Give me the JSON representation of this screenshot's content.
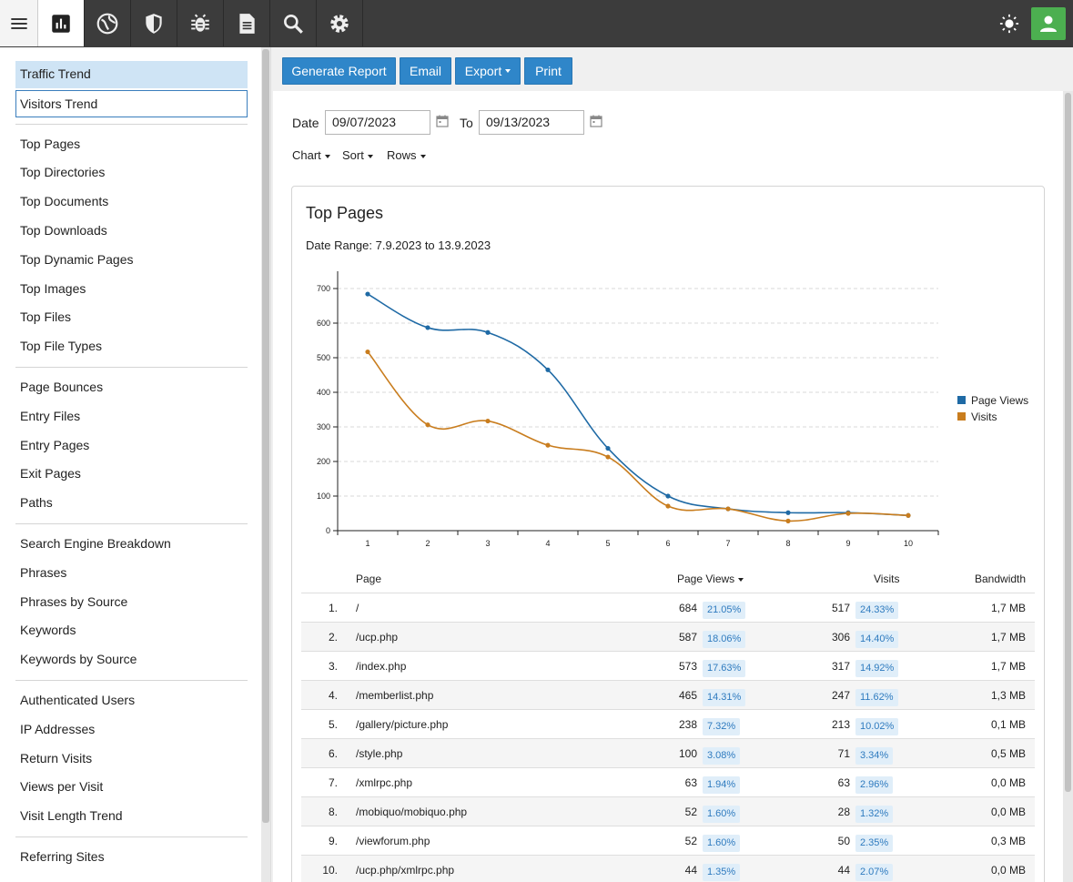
{
  "topbar": {
    "icons": [
      "menu-icon",
      "chart-icon",
      "globe-icon",
      "shield-icon",
      "bug-icon",
      "document-icon",
      "search-icon",
      "gear-icon"
    ],
    "right_icons": [
      "sun-icon",
      "user-icon"
    ],
    "colors": {
      "bar": "#3c3c3c",
      "user": "#4caf50"
    }
  },
  "sidebar": {
    "top_items": [
      "Traffic Trend",
      "Visitors Trend"
    ],
    "groups": [
      [
        "Top Pages",
        "Top Directories",
        "Top Documents",
        "Top Downloads",
        "Top Dynamic Pages",
        "Top Images",
        "Top Files",
        "Top File Types"
      ],
      [
        "Page Bounces",
        "Entry Files",
        "Entry Pages",
        "Exit Pages",
        "Paths"
      ],
      [
        "Search Engine Breakdown",
        "Phrases",
        "Phrases by Source",
        "Keywords",
        "Keywords by Source"
      ],
      [
        "Authenticated Users",
        "IP Addresses",
        "Return Visits",
        "Views per Visit",
        "Visit Length Trend"
      ],
      [
        "Referring Sites"
      ]
    ]
  },
  "toolbar": {
    "generate": "Generate Report",
    "email": "Email",
    "export": "Export",
    "print": "Print",
    "accent": "#2f86c9"
  },
  "filters": {
    "date_label": "Date",
    "from": "09/07/2023",
    "to_label": "To",
    "to": "09/13/2023",
    "chart": "Chart",
    "sort": "Sort",
    "rows": "Rows"
  },
  "card": {
    "title": "Top Pages",
    "range": "Date Range: 7.9.2023 to 13.9.2023"
  },
  "chart_data": {
    "type": "line",
    "x": [
      1,
      2,
      3,
      4,
      5,
      6,
      7,
      8,
      9,
      10
    ],
    "ylim": [
      0,
      750
    ],
    "yticks": [
      0,
      100,
      200,
      300,
      400,
      500,
      600,
      700
    ],
    "grid": true,
    "legend_position": "right",
    "series": [
      {
        "name": "Page Views",
        "color": "#1f6aa5",
        "values": [
          684,
          587,
          573,
          465,
          238,
          100,
          63,
          52,
          52,
          44
        ]
      },
      {
        "name": "Visits",
        "color": "#c97d1e",
        "values": [
          517,
          306,
          317,
          247,
          213,
          71,
          63,
          28,
          50,
          44
        ]
      }
    ]
  },
  "table": {
    "headers": {
      "page": "Page",
      "views": "Page Views",
      "visits": "Visits",
      "bandwidth": "Bandwidth"
    },
    "rows": [
      {
        "n": "1.",
        "page": "/",
        "views": "684",
        "views_pct": "21.05%",
        "visits": "517",
        "visits_pct": "24.33%",
        "bw": "1,7 MB"
      },
      {
        "n": "2.",
        "page": "/ucp.php",
        "views": "587",
        "views_pct": "18.06%",
        "visits": "306",
        "visits_pct": "14.40%",
        "bw": "1,7 MB"
      },
      {
        "n": "3.",
        "page": "/index.php",
        "views": "573",
        "views_pct": "17.63%",
        "visits": "317",
        "visits_pct": "14.92%",
        "bw": "1,7 MB"
      },
      {
        "n": "4.",
        "page": "/memberlist.php",
        "views": "465",
        "views_pct": "14.31%",
        "visits": "247",
        "visits_pct": "11.62%",
        "bw": "1,3 MB"
      },
      {
        "n": "5.",
        "page": "/gallery/picture.php",
        "views": "238",
        "views_pct": "7.32%",
        "visits": "213",
        "visits_pct": "10.02%",
        "bw": "0,1 MB"
      },
      {
        "n": "6.",
        "page": "/style.php",
        "views": "100",
        "views_pct": "3.08%",
        "visits": "71",
        "visits_pct": "3.34%",
        "bw": "0,5 MB"
      },
      {
        "n": "7.",
        "page": "/xmlrpc.php",
        "views": "63",
        "views_pct": "1.94%",
        "visits": "63",
        "visits_pct": "2.96%",
        "bw": "0,0 MB"
      },
      {
        "n": "8.",
        "page": "/mobiquo/mobiquo.php",
        "views": "52",
        "views_pct": "1.60%",
        "visits": "28",
        "visits_pct": "1.32%",
        "bw": "0,0 MB"
      },
      {
        "n": "9.",
        "page": "/viewforum.php",
        "views": "52",
        "views_pct": "1.60%",
        "visits": "50",
        "visits_pct": "2.35%",
        "bw": "0,3 MB"
      },
      {
        "n": "10.",
        "page": "/ucp.php/xmlrpc.php",
        "views": "44",
        "views_pct": "1.35%",
        "visits": "44",
        "visits_pct": "2.07%",
        "bw": "0,0 MB"
      }
    ]
  }
}
